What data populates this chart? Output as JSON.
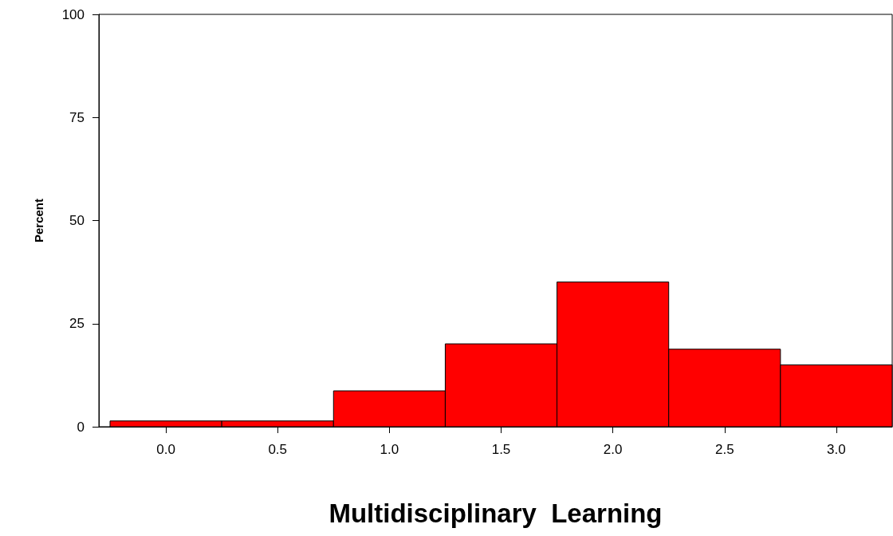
{
  "chart_data": {
    "type": "histogram",
    "xlabel": "Multidisciplinary  Learning",
    "ylabel": "Percent",
    "bins": [
      -0.25,
      0.25,
      0.75,
      1.25,
      1.75,
      2.25,
      2.75,
      3.25
    ],
    "values": [
      1.4,
      1.4,
      8.7,
      20.1,
      35.1,
      18.8,
      15.0
    ],
    "color": "#ff0000",
    "xlim": [
      -0.3,
      3.25
    ],
    "xticks": [
      {
        "value": 0,
        "label": "0.0"
      },
      {
        "value": 0.5,
        "label": "0.5"
      },
      {
        "value": 1,
        "label": "1.0"
      },
      {
        "value": 1.5,
        "label": "1.5"
      },
      {
        "value": 2,
        "label": "2.0"
      },
      {
        "value": 2.5,
        "label": "2.5"
      },
      {
        "value": 3,
        "label": "3.0"
      }
    ],
    "ylim": [
      0,
      100
    ],
    "yticks": [
      0,
      25,
      50,
      75,
      100
    ],
    "grid": false
  }
}
